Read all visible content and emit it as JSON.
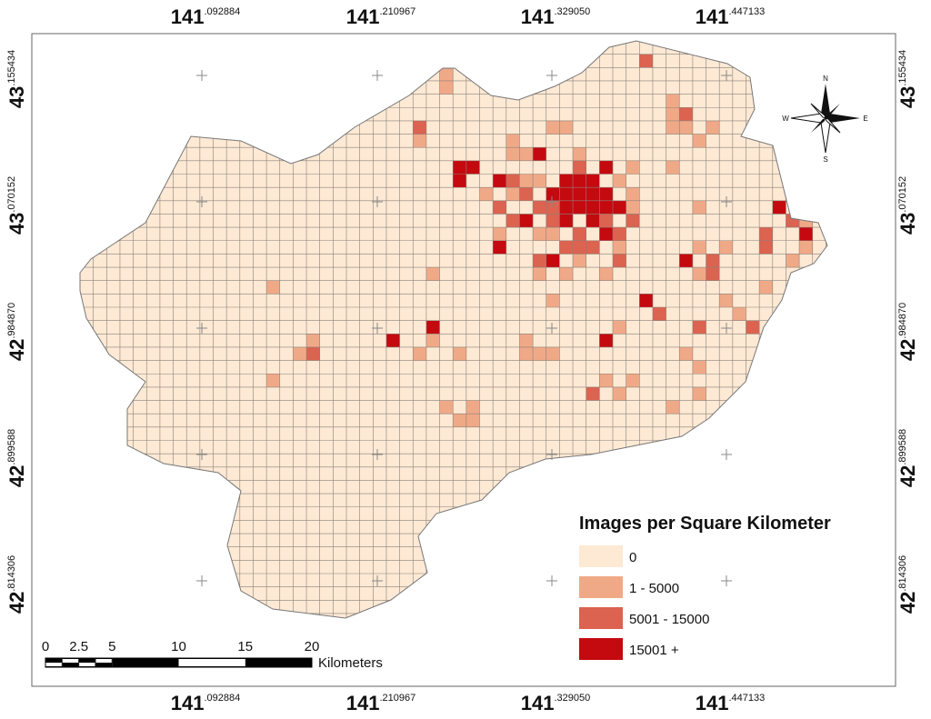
{
  "longitude_labels": [
    {
      "degrees": "141",
      "fraction": ".092884"
    },
    {
      "degrees": "141",
      "fraction": ".210967"
    },
    {
      "degrees": "141",
      "fraction": ".329050"
    },
    {
      "degrees": "141",
      "fraction": ".447133"
    }
  ],
  "latitude_labels": [
    {
      "degrees": "43",
      "fraction": ".155434"
    },
    {
      "degrees": "43",
      "fraction": ".070152"
    },
    {
      "degrees": "42",
      "fraction": ".984870"
    },
    {
      "degrees": "42",
      "fraction": ".899588"
    },
    {
      "degrees": "42",
      "fraction": ".814306"
    }
  ],
  "legend": {
    "title": "Images per Square Kilometer",
    "items": [
      {
        "label": "0",
        "color": "#fde9d4"
      },
      {
        "label": "1 - 5000",
        "color": "#f0a987"
      },
      {
        "label": "5001  - 15000",
        "color": "#db6350"
      },
      {
        "label": "15001 +",
        "color": "#c4090f"
      }
    ]
  },
  "scale_bar": {
    "ticks": [
      0,
      2.5,
      5,
      10,
      15,
      20
    ],
    "unit": "Kilometers"
  },
  "compass": {
    "n": "N",
    "s": "S",
    "e": "E",
    "w": "W"
  }
}
